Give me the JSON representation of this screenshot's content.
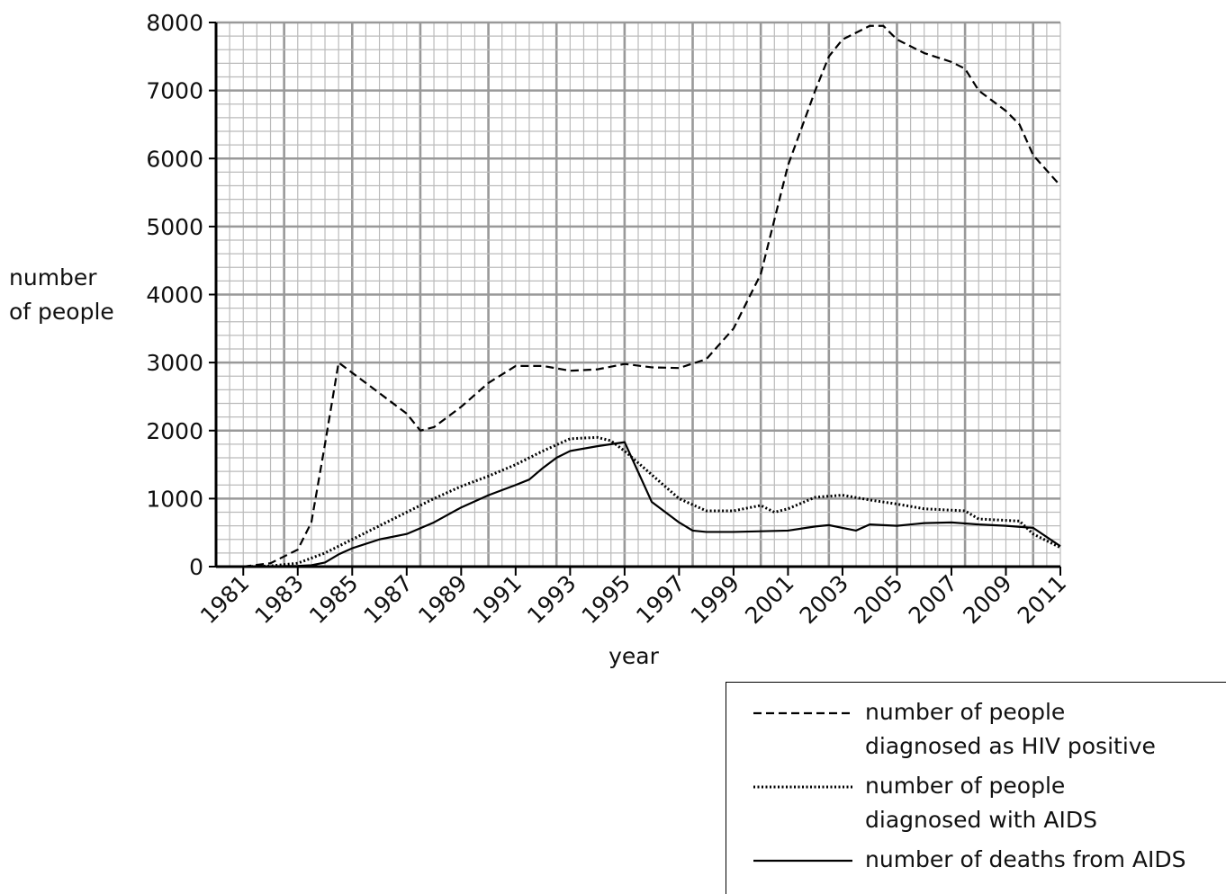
{
  "chart_data": {
    "type": "line",
    "xlabel": "year",
    "ylabel": "number\nof people",
    "xlim": [
      1980,
      2011
    ],
    "ylim": [
      0,
      8000
    ],
    "xticks": [
      1981,
      1983,
      1985,
      1987,
      1989,
      1991,
      1993,
      1995,
      1997,
      1999,
      2001,
      2003,
      2005,
      2007,
      2009,
      2011
    ],
    "yticks": [
      0,
      1000,
      2000,
      3000,
      4000,
      5000,
      6000,
      7000,
      8000
    ],
    "grid": true,
    "legend": "lower right",
    "series": [
      {
        "name": "number of people\ndiagnosed as HIV positive",
        "color": "#000000",
        "dash": "dashed",
        "x": [
          1981,
          1982,
          1983,
          1983.5,
          1984,
          1984.5,
          1985,
          1986,
          1987,
          1987.5,
          1988,
          1989,
          1990,
          1991,
          1992,
          1993,
          1994,
          1995,
          1996,
          1997,
          1998,
          1999,
          2000,
          2001,
          2002,
          2002.5,
          2003,
          2004,
          2004.5,
          2005,
          2006,
          2007,
          2007.5,
          2008,
          2009,
          2009.5,
          2010,
          2011
        ],
        "values": [
          0,
          50,
          250,
          650,
          1800,
          3000,
          2850,
          2550,
          2250,
          2000,
          2050,
          2350,
          2700,
          2950,
          2950,
          2880,
          2900,
          2980,
          2930,
          2920,
          3050,
          3500,
          4300,
          5900,
          7000,
          7500,
          7750,
          7950,
          7950,
          7750,
          7550,
          7420,
          7320,
          7000,
          6700,
          6500,
          6050,
          5600
        ]
      },
      {
        "name": "number of people\ndiagnosed with AIDS",
        "color": "#000000",
        "dash": "dotted",
        "x": [
          1981,
          1982,
          1983,
          1984,
          1985,
          1986,
          1987,
          1988,
          1989,
          1990,
          1991,
          1992,
          1993,
          1994,
          1994.5,
          1995,
          1996,
          1997,
          1998,
          1999,
          2000,
          2000.5,
          2001,
          2002,
          2003,
          2004,
          2005,
          2006,
          2007,
          2007.5,
          2008,
          2009,
          2009.5,
          2010,
          2011
        ],
        "values": [
          0,
          10,
          50,
          200,
          400,
          600,
          800,
          1000,
          1180,
          1330,
          1500,
          1700,
          1880,
          1900,
          1850,
          1700,
          1350,
          1000,
          820,
          820,
          900,
          800,
          850,
          1020,
          1050,
          980,
          920,
          850,
          830,
          820,
          700,
          680,
          670,
          480,
          280
        ]
      },
      {
        "name": "number of deaths from AIDS",
        "color": "#000000",
        "dash": "solid",
        "x": [
          1981,
          1983,
          1983.5,
          1984,
          1984.5,
          1985,
          1986,
          1987,
          1988,
          1989,
          1990,
          1991,
          1991.5,
          1992,
          1992.5,
          1993,
          1994,
          1995,
          1996,
          1997,
          1997.5,
          1998,
          1999,
          2000,
          2001,
          2002,
          2002.5,
          2003,
          2003.5,
          2004,
          2005,
          2006,
          2007,
          2008,
          2009,
          2010,
          2011
        ],
        "values": [
          0,
          10,
          20,
          60,
          180,
          270,
          400,
          480,
          650,
          870,
          1050,
          1200,
          1280,
          1450,
          1600,
          1700,
          1770,
          1830,
          950,
          650,
          530,
          510,
          510,
          520,
          530,
          590,
          610,
          570,
          530,
          620,
          600,
          640,
          650,
          620,
          600,
          570,
          300
        ]
      }
    ]
  }
}
